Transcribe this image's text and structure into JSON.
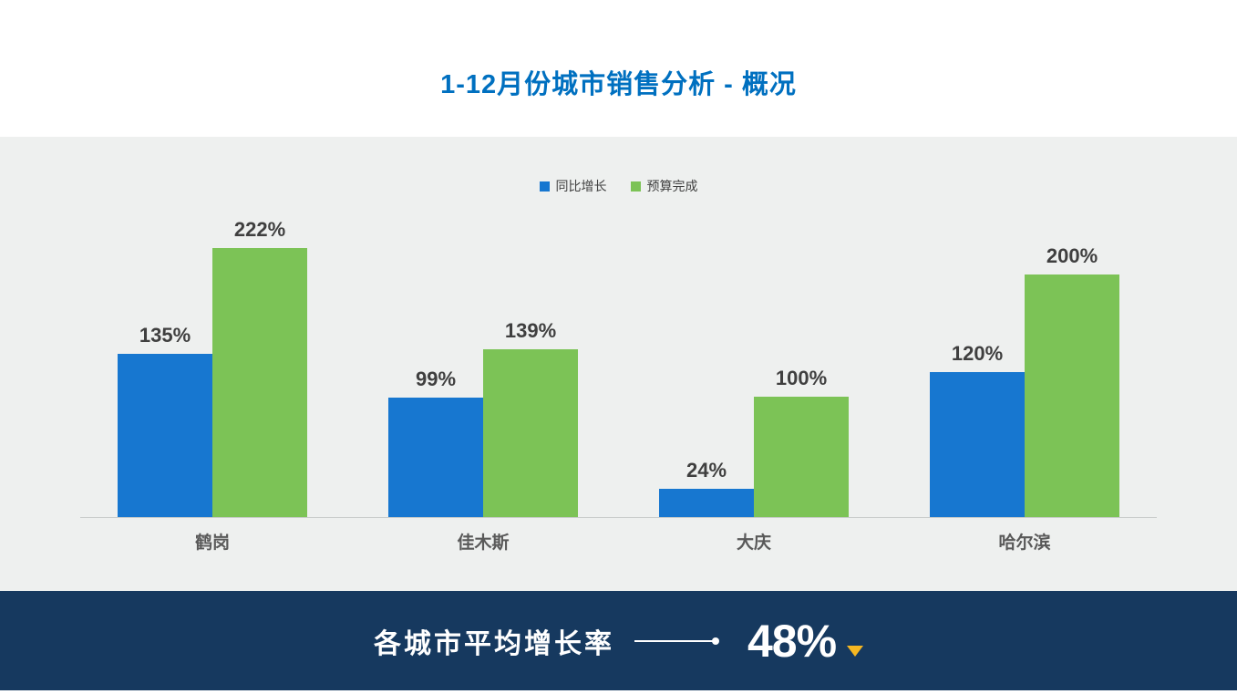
{
  "header": {
    "title": "1-12月份城市销售分析 - 概况"
  },
  "chart_data": {
    "type": "bar",
    "title": "1-12月份城市销售分析 - 概况",
    "categories": [
      "鹤岗",
      "佳木斯",
      "大庆",
      "哈尔滨"
    ],
    "series": [
      {
        "name": "同比增长",
        "color": "#1777d0",
        "values": [
          135,
          99,
          24,
          120
        ]
      },
      {
        "name": "预算完成",
        "color": "#7cc356",
        "values": [
          222,
          139,
          100,
          200
        ]
      }
    ],
    "value_suffix": "%",
    "ylim": [
      0,
      240
    ],
    "grid": false,
    "legend_position": "top-center",
    "data_labels": true
  },
  "footer": {
    "label": "各城市平均增长率",
    "value": "48%",
    "indicator": "triangle-down-icon",
    "indicator_color": "#f5b722"
  },
  "colors": {
    "title": "#0070c0",
    "chart_background": "#eef0ef",
    "footer_background": "#16395f",
    "bar_blue": "#1777d0",
    "bar_green": "#7cc356",
    "axis_line": "#c9cccb",
    "value_label": "#3f3f3f",
    "category_label": "#595959"
  }
}
